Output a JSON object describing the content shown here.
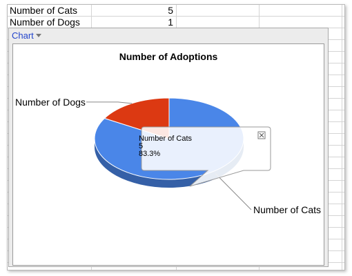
{
  "sheet": {
    "rows": [
      {
        "label": "Number of Cats",
        "value": "5"
      },
      {
        "label": "Number of Dogs",
        "value": "1"
      }
    ]
  },
  "chart_panel": {
    "tab_label": "Chart"
  },
  "chart_data": {
    "type": "pie",
    "title": "Number of Adoptions",
    "categories": [
      "Number of Cats",
      "Number of Dogs"
    ],
    "values": [
      5,
      1
    ],
    "colors": [
      "#4a86e8",
      "#dc3912"
    ],
    "legend": "labels"
  },
  "tooltip": {
    "category": "Number of Cats",
    "value": "5",
    "percent": "83.3%",
    "close_icon": "close-icon"
  }
}
